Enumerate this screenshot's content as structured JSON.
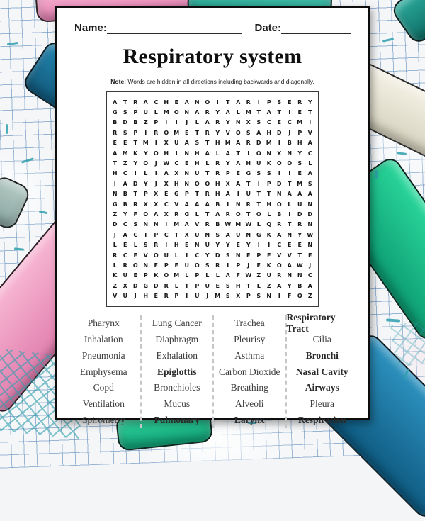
{
  "header": {
    "name_label": "Name:",
    "date_label": "Date:"
  },
  "title": "Respiratory system",
  "note": {
    "prefix": "Note:",
    "text": " Words are hidden in all directions including backwards and diagonally."
  },
  "puzzle": {
    "rows": [
      "ATRACHEANOITARIPSERY",
      "GSPULMONARYALMTATIET",
      "BDBZPIIJLARYNXSCECMI",
      "RSPIROMETRYVOSAHDJPV",
      "EETMIXUASTHMARDMIBHA",
      "AMKYOHINHALATIONXNYC",
      "TZYOJWCEHLRYAHUKOOSL",
      "HCILIAXNUTRPEGSSIIEA",
      "IADYJXHNOOHXATIPDTMS",
      "NBTPXEGPTRHAIUTTNAAA",
      "GBRXXCVAAABINRTHOLUN",
      "ZYFOAXRGLTAROTOLBIDD",
      "DCSNNIMAVRBWMWLQRTRN",
      "JACIPCTXUNSAUNGKANYW",
      "LELSRIHENUYYEYIICEEN",
      "RCEVOULICYDSNEPFVVTE",
      "LRONEPEUOSRIPJEKOAWJ",
      "KUEPKOMLPLLAFWZURNNC",
      "ZXDGDRLTPUESHTLZAYBA",
      "VUJHERPIUJMSXPSNIFQZ"
    ]
  },
  "word_list": {
    "columns": [
      [
        "Pharynx",
        "Inhalation",
        "Pneumonia",
        "Emphysema",
        "Copd",
        "Ventilation",
        "Spirometry"
      ],
      [
        "Lung Cancer",
        "Diaphragm",
        "Exhalation",
        "Epiglottis",
        "Bronchioles",
        "Mucus",
        "Pulmonary"
      ],
      [
        "Trachea",
        "Pleurisy",
        "Asthma",
        "Carbon Dioxide",
        "Breathing",
        "Alveoli",
        "Larynx"
      ],
      [
        "Respiratory Tract",
        "Cilia",
        "Bronchi",
        "Nasal Cavity",
        "Airways",
        "Pleura",
        "Respiration"
      ]
    ],
    "bold_words": [
      "Epiglottis",
      "Pulmonary",
      "Larynx",
      "Bronchi",
      "Nasal Cavity",
      "Airways",
      "Respiration",
      "Respiratory Tract"
    ]
  },
  "colors": {
    "card_border": "#0d0d0d",
    "pink_roll": "#ef94bf",
    "dark_blue_roll": "#1a6e97",
    "green_roll": "#18c48e",
    "blue_roll": "#1d7fa8",
    "cream_roll": "#ece8da",
    "teal_roll": "#2bb3a0",
    "graph_line_blue": "#6892c0",
    "scribble_teal": "#2f9fae"
  }
}
